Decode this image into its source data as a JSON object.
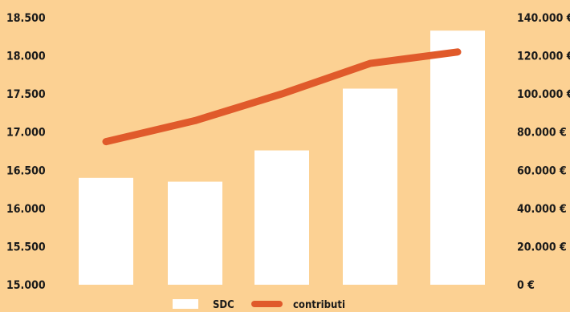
{
  "chart_data": {
    "type": "bar",
    "categories": [
      "",
      "",
      "",
      "",
      ""
    ],
    "series": [
      {
        "name": "SDC",
        "type": "bar",
        "axis": "left",
        "values": [
          16400,
          16350,
          16760,
          17570,
          18330
        ]
      },
      {
        "name": "contributi",
        "type": "line",
        "axis": "right",
        "values": [
          75000,
          86000,
          100000,
          116000,
          122000
        ]
      }
    ],
    "y_left": {
      "ylim": [
        15000,
        18500
      ],
      "ticks": [
        "15.000",
        "15.500",
        "16.000",
        "16.500",
        "17.000",
        "17.500",
        "18.000",
        "18.500"
      ]
    },
    "y_right": {
      "ylim": [
        0,
        140000
      ],
      "ticks": [
        "0 €",
        "20.000 €",
        "40.000 €",
        "60.000 €",
        "80.000 €",
        "100.000 €",
        "120.000 €",
        "140.000 €"
      ]
    },
    "grid": false,
    "legend_position": "bottom",
    "colors": {
      "background": "#fcd193",
      "bar": "#ffffff",
      "line": "#e05a2b",
      "text": "#1a1a1a"
    }
  }
}
